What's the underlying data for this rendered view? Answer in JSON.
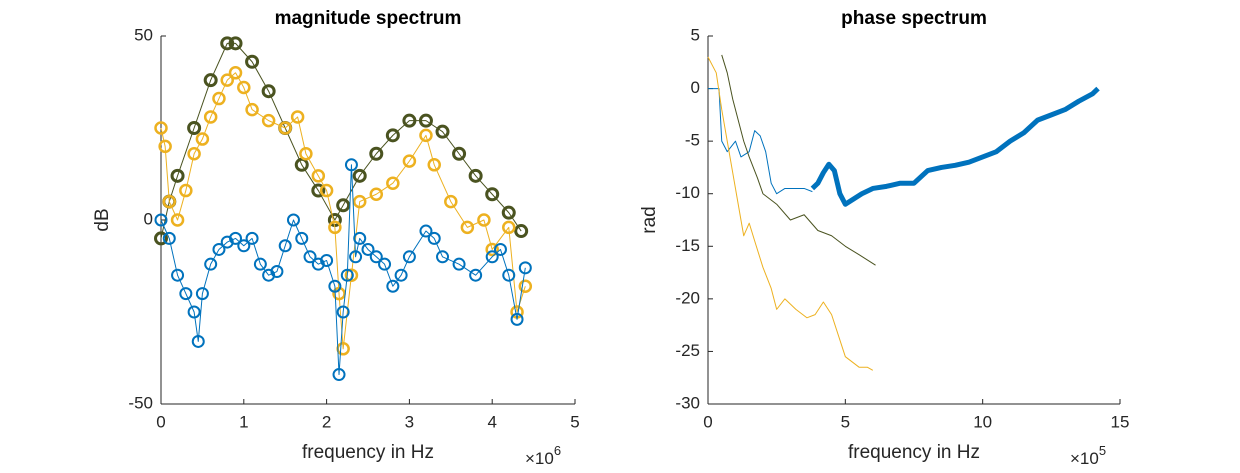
{
  "chart_data": [
    {
      "type": "line",
      "title": "magnitude spectrum",
      "x_label": "frequency in Hz",
      "y_label": "dB",
      "x_multiplier": {
        "base": "×10",
        "exponent": "6"
      },
      "xlim": [
        0,
        5000000
      ],
      "ylim": [
        -50,
        50
      ],
      "xticks": [
        0,
        {
          "value": 1000000,
          "label": "1"
        },
        {
          "value": 2000000,
          "label": "2"
        },
        {
          "value": 3000000,
          "label": "3"
        },
        {
          "value": 4000000,
          "label": "4"
        },
        {
          "value": 5000000,
          "label": "5"
        }
      ],
      "yticks": [
        -50,
        0,
        50
      ],
      "marker": "circle",
      "series": [
        {
          "color": "#4a5320",
          "line_width": 3,
          "x": [
            0,
            100000,
            200000,
            400000,
            600000,
            800000,
            900000,
            1100000,
            1300000,
            1500000,
            1700000,
            1900000,
            2100000,
            2200000,
            2400000,
            2600000,
            2800000,
            3000000,
            3200000,
            3400000,
            3600000,
            3800000,
            4000000,
            4200000,
            4350000
          ],
          "values": [
            -5,
            5,
            12,
            25,
            38,
            48,
            48,
            43,
            35,
            25,
            15,
            8,
            0,
            4,
            12,
            18,
            23,
            27,
            27,
            24,
            18,
            12,
            7,
            2,
            -3
          ]
        },
        {
          "color": "#edb120",
          "line_width": 2.5,
          "x": [
            0,
            50000,
            100000,
            200000,
            300000,
            400000,
            500000,
            600000,
            700000,
            800000,
            900000,
            1000000,
            1100000,
            1300000,
            1500000,
            1650000,
            1750000,
            1900000,
            2000000,
            2100000,
            2150000,
            2200000,
            2300000,
            2400000,
            2600000,
            2800000,
            3000000,
            3200000,
            3300000,
            3500000,
            3700000,
            3900000,
            4000000,
            4200000,
            4300000,
            4400000
          ],
          "values": [
            25,
            20,
            5,
            0,
            8,
            18,
            22,
            28,
            33,
            38,
            40,
            36,
            30,
            27,
            25,
            28,
            18,
            12,
            8,
            -2,
            -20,
            -35,
            -15,
            5,
            7,
            10,
            16,
            23,
            15,
            5,
            -2,
            0,
            -8,
            -2,
            -25,
            -18
          ]
        },
        {
          "color": "#0072bd",
          "line_width": 2,
          "x": [
            0,
            100000,
            200000,
            300000,
            400000,
            450000,
            500000,
            600000,
            700000,
            800000,
            900000,
            1000000,
            1100000,
            1200000,
            1300000,
            1400000,
            1500000,
            1600000,
            1700000,
            1800000,
            1900000,
            2000000,
            2100000,
            2150000,
            2200000,
            2250000,
            2300000,
            2350000,
            2400000,
            2500000,
            2600000,
            2700000,
            2800000,
            2900000,
            3000000,
            3200000,
            3300000,
            3400000,
            3600000,
            3800000,
            4000000,
            4100000,
            4200000,
            4300000,
            4400000
          ],
          "values": [
            0,
            -5,
            -15,
            -20,
            -25,
            -33,
            -20,
            -12,
            -8,
            -6,
            -5,
            -7,
            -5,
            -12,
            -15,
            -14,
            -7,
            0,
            -5,
            -10,
            -12,
            -11,
            -18,
            -42,
            -25,
            -15,
            15,
            -10,
            -5,
            -8,
            -10,
            -12,
            -18,
            -15,
            -10,
            -3,
            -5,
            -10,
            -12,
            -15,
            -10,
            -8,
            -15,
            -27,
            -13
          ]
        }
      ]
    },
    {
      "type": "line",
      "title": "phase spectrum",
      "x_label": "frequency in Hz",
      "y_label": "rad",
      "x_multiplier": {
        "base": "×10",
        "exponent": "5"
      },
      "xlim": [
        0,
        1500000
      ],
      "ylim": [
        -30,
        5
      ],
      "xticks": [
        0,
        {
          "value": 500000,
          "label": "5"
        },
        {
          "value": 1000000,
          "label": "10"
        },
        {
          "value": 1500000,
          "label": "15"
        }
      ],
      "yticks": [
        -30,
        -25,
        -20,
        -15,
        -10,
        -5,
        0,
        5
      ],
      "series": [
        {
          "color": "#0072bd",
          "line_width": 1,
          "x": [
            0,
            40000,
            50000,
            70000,
            100000,
            120000,
            150000,
            170000,
            190000,
            210000,
            230000,
            250000,
            280000,
            320000,
            350000,
            380000
          ],
          "values": [
            0,
            0,
            -5,
            -6,
            -5,
            -6.5,
            -6,
            -4,
            -4.5,
            -6,
            -9,
            -10,
            -9.5,
            -9.5,
            -9.5,
            -9.8
          ]
        },
        {
          "color": "#0072bd",
          "line_width": 5,
          "x": [
            380000,
            400000,
            420000,
            440000,
            460000,
            480000,
            500000,
            530000,
            560000,
            600000,
            650000,
            700000,
            750000,
            800000,
            850000,
            900000,
            950000,
            1000000,
            1050000,
            1100000,
            1150000,
            1200000,
            1250000,
            1300000,
            1350000,
            1400000,
            1420000
          ],
          "values": [
            -9.5,
            -9,
            -8,
            -7.2,
            -7.8,
            -10,
            -11,
            -10.5,
            -10,
            -9.5,
            -9.3,
            -9,
            -9,
            -7.8,
            -7.5,
            -7.3,
            -7,
            -6.5,
            -6,
            -5,
            -4.2,
            -3,
            -2.5,
            -2,
            -1.2,
            -0.5,
            0
          ]
        },
        {
          "color": "#4a5320",
          "line_width": 1,
          "x": [
            50000,
            70000,
            90000,
            110000,
            130000,
            150000,
            180000,
            200000,
            250000,
            300000,
            350000,
            400000,
            450000,
            500000,
            550000,
            610000
          ],
          "values": [
            3.2,
            1.5,
            -1,
            -3,
            -5,
            -6.5,
            -8.5,
            -10,
            -11,
            -12.5,
            -12,
            -13.5,
            -14,
            -15,
            -15.8,
            -16.8
          ]
        },
        {
          "color": "#edb120",
          "line_width": 1,
          "x": [
            0,
            30000,
            50000,
            70000,
            90000,
            110000,
            130000,
            150000,
            170000,
            200000,
            230000,
            250000,
            280000,
            320000,
            360000,
            390000,
            420000,
            450000,
            500000,
            550000,
            580000,
            600000
          ],
          "values": [
            3,
            1.5,
            -2,
            -5,
            -8,
            -11,
            -14,
            -12.8,
            -14.5,
            -17,
            -19,
            -21,
            -20,
            -21,
            -21.8,
            -21.5,
            -20.3,
            -21.5,
            -25.5,
            -26.5,
            -26.5,
            -26.8
          ]
        }
      ]
    }
  ]
}
